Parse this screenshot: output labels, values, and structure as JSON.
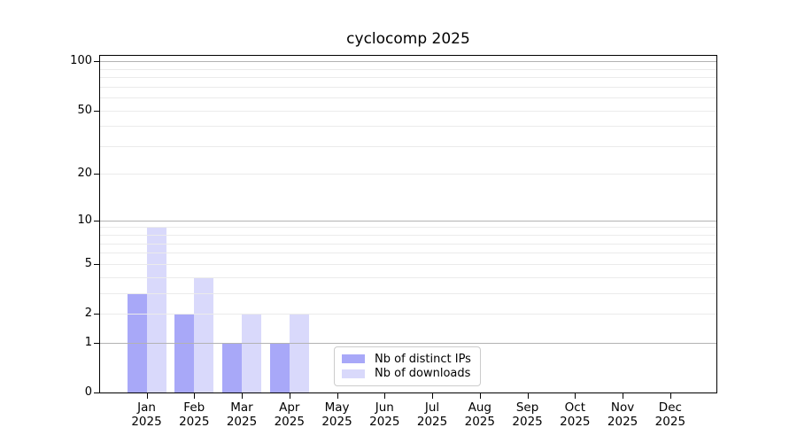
{
  "chart_data": {
    "type": "bar",
    "title": "cyclocomp 2025",
    "categories": [
      "Jan 2025",
      "Feb 2025",
      "Mar 2025",
      "Apr 2025",
      "May 2025",
      "Jun 2025",
      "Jul 2025",
      "Aug 2025",
      "Sep 2025",
      "Oct 2025",
      "Nov 2025",
      "Dec 2025"
    ],
    "series": [
      {
        "name": "Nb of distinct IPs",
        "color": "#a8a8f8",
        "values": [
          3,
          2,
          1,
          1,
          0,
          0,
          0,
          0,
          0,
          0,
          0,
          0
        ]
      },
      {
        "name": "Nb of downloads",
        "color": "#d9d9fb",
        "values": [
          9,
          4,
          2,
          2,
          0,
          0,
          0,
          0,
          0,
          0,
          0,
          0
        ]
      }
    ],
    "xlabel": "",
    "ylabel": "",
    "y_scale": "log1p",
    "ylim": [
      0,
      110
    ],
    "y_ticks": [
      0,
      1,
      2,
      5,
      10,
      20,
      50,
      100
    ],
    "y_major_gridlines": [
      1,
      10,
      100
    ],
    "y_minor_gridlines": [
      2,
      3,
      4,
      5,
      6,
      7,
      8,
      9,
      20,
      30,
      40,
      50,
      60,
      70,
      80,
      90
    ],
    "grid": "both, drawn above bars",
    "grid_major_color": "#b3b3b3",
    "grid_minor_color": "#ebebeb",
    "legend_position": "lower center"
  }
}
